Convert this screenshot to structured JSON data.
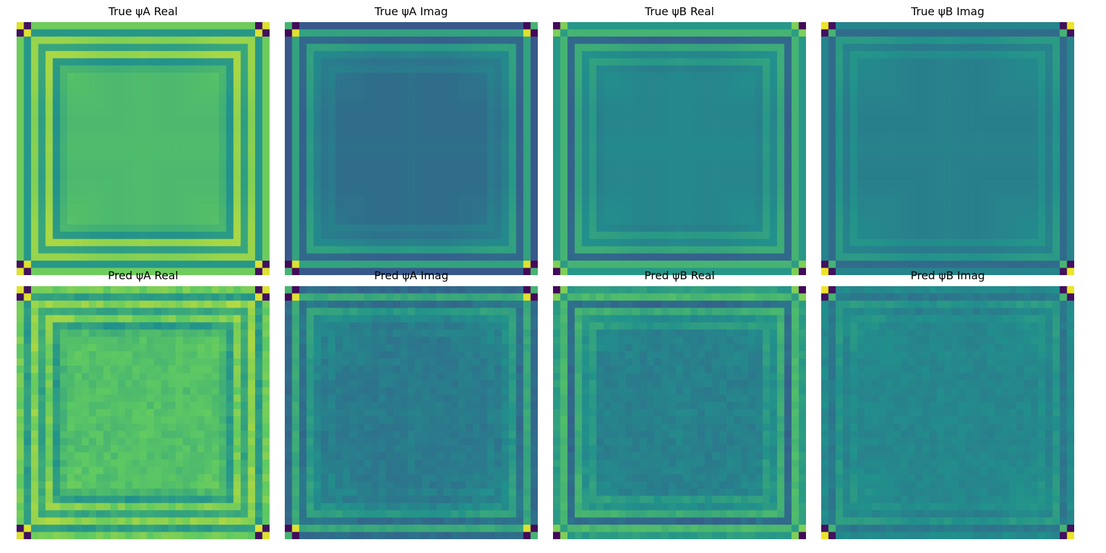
{
  "colormap": [
    "#440154",
    "#3b528b",
    "#21918c",
    "#5ec962",
    "#fde725"
  ],
  "chart_data": [
    {
      "type": "heatmap",
      "title": "True ψA Real",
      "rows": 35,
      "cols": 35,
      "vmin": -1,
      "vmax": 1,
      "corner": [
        [
          0.9,
          -0.9
        ],
        [
          -0.9,
          0.9
        ]
      ],
      "frame": [
        0.55,
        0.05,
        0.65,
        0.15,
        0.7,
        0.05,
        0.3
      ],
      "interior": 0.4,
      "noise": 0.0
    },
    {
      "type": "heatmap",
      "title": "True ψA Imag",
      "rows": 35,
      "cols": 35,
      "vmin": -1,
      "vmax": 1,
      "corner": [
        [
          0.3,
          -0.95
        ],
        [
          -0.95,
          0.9
        ]
      ],
      "frame": [
        -0.45,
        0.15,
        -0.35,
        0.1,
        -0.1,
        -0.2,
        -0.15
      ],
      "interior": -0.25,
      "noise": 0.0
    },
    {
      "type": "heatmap",
      "title": "True ψB Real",
      "rows": 35,
      "cols": 35,
      "vmin": -1,
      "vmax": 1,
      "corner": [
        [
          -0.95,
          0.6
        ],
        [
          0.6,
          0.1
        ]
      ],
      "frame": [
        0.05,
        0.3,
        -0.35,
        0.2,
        -0.05,
        0.1,
        -0.1
      ],
      "interior": -0.05,
      "noise": 0.0
    },
    {
      "type": "heatmap",
      "title": "True ψB Imag",
      "rows": 35,
      "cols": 35,
      "vmin": -1,
      "vmax": 1,
      "corner": [
        [
          0.95,
          -0.9
        ],
        [
          -0.9,
          0.3
        ]
      ],
      "frame": [
        -0.1,
        -0.3,
        0.05,
        -0.15,
        0.0,
        -0.1,
        -0.1
      ],
      "interior": -0.1,
      "noise": 0.0
    },
    {
      "type": "heatmap",
      "title": "Pred ψA Real",
      "rows": 35,
      "cols": 35,
      "vmin": -1,
      "vmax": 1,
      "corner": [
        [
          0.9,
          -0.9
        ],
        [
          -0.9,
          0.9
        ]
      ],
      "frame": [
        0.55,
        0.1,
        0.65,
        0.2,
        0.6,
        0.1,
        0.35
      ],
      "interior": 0.45,
      "noise": 0.08
    },
    {
      "type": "heatmap",
      "title": "Pred ψA Imag",
      "rows": 35,
      "cols": 35,
      "vmin": -1,
      "vmax": 1,
      "corner": [
        [
          0.3,
          -0.95
        ],
        [
          -0.95,
          0.9
        ]
      ],
      "frame": [
        -0.3,
        0.2,
        -0.25,
        0.1,
        -0.05,
        -0.15,
        -0.1
      ],
      "interior": -0.15,
      "noise": 0.06
    },
    {
      "type": "heatmap",
      "title": "Pred ψB Real",
      "rows": 35,
      "cols": 35,
      "vmin": -1,
      "vmax": 1,
      "corner": [
        [
          -0.95,
          0.6
        ],
        [
          0.6,
          0.1
        ]
      ],
      "frame": [
        0.1,
        0.35,
        -0.3,
        0.25,
        0.0,
        0.1,
        -0.1
      ],
      "interior": -0.1,
      "noise": 0.06
    },
    {
      "type": "heatmap",
      "title": "Pred ψB Imag",
      "rows": 35,
      "cols": 35,
      "vmin": -1,
      "vmax": 1,
      "corner": [
        [
          0.95,
          -0.9
        ],
        [
          -0.9,
          0.3
        ]
      ],
      "frame": [
        -0.05,
        -0.2,
        0.05,
        -0.1,
        0.0,
        -0.05,
        -0.05
      ],
      "interior": -0.05,
      "noise": 0.05
    }
  ]
}
